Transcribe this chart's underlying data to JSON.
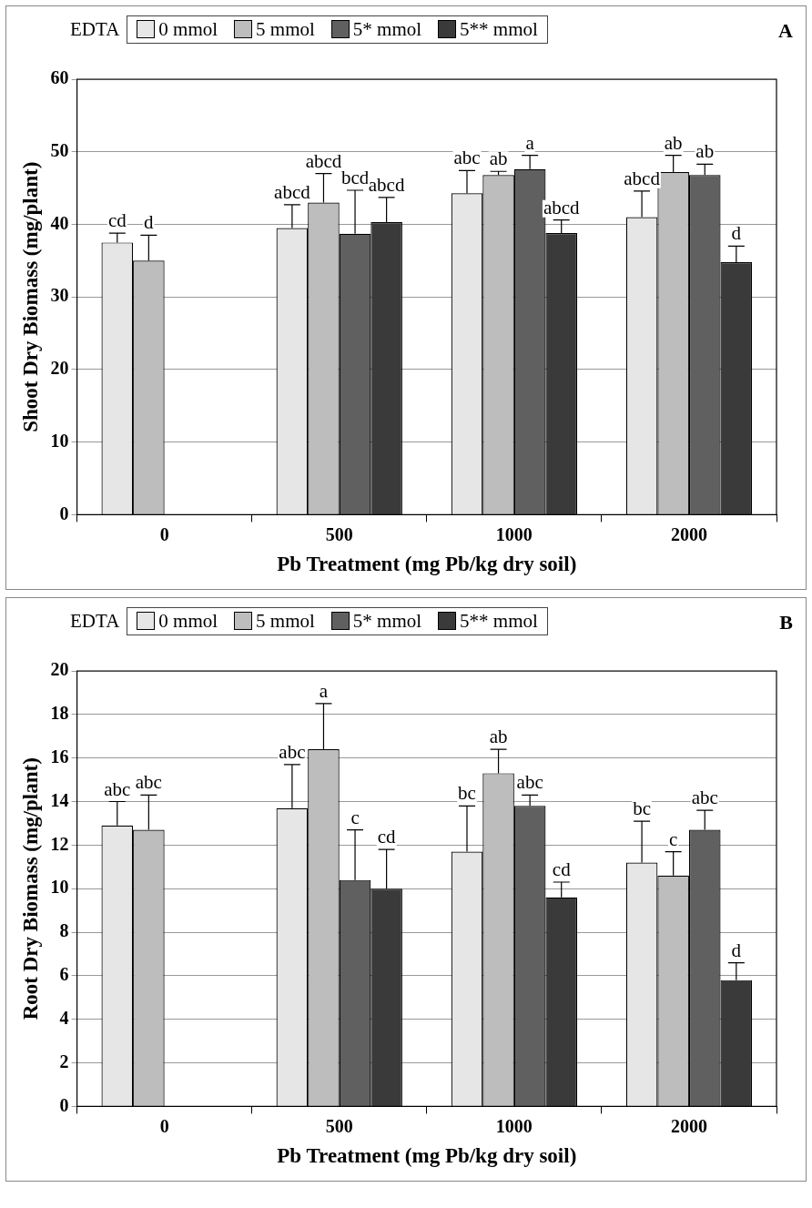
{
  "chart_data": [
    {
      "type": "bar",
      "xlabel": "Pb Treatment (mg Pb/kg dry soil)",
      "ylabel": "Shoot Dry Biomass (mg/plant)",
      "legend_title": "EDTA",
      "legend": "top",
      "grid": "y",
      "categories": [
        "0",
        "500",
        "1000",
        "2000"
      ],
      "ylim": [
        0,
        60
      ],
      "yticks": [
        0,
        10,
        20,
        30,
        40,
        50,
        60
      ],
      "annotations": [
        "A"
      ],
      "series": [
        {
          "name": "0 mmol",
          "color": "#e6e6e6",
          "values": [
            37.5,
            39.5,
            44.3,
            41
          ],
          "errors": [
            [
              37.5,
              38.8
            ],
            [
              39.5,
              42.7
            ],
            [
              44.3,
              47.4
            ],
            [
              41,
              44.6
            ]
          ],
          "value_labels": [
            "cd",
            "abcd",
            "abc",
            "abcd"
          ]
        },
        {
          "name": "5 mmol",
          "color": "#bdbdbd",
          "values": [
            35,
            43,
            46.8,
            47.2
          ],
          "errors": [
            [
              35,
              38.5
            ],
            [
              43,
              47
            ],
            [
              46.8,
              47.3
            ],
            [
              47.2,
              49.5
            ]
          ],
          "value_labels": [
            "d",
            "abcd",
            "ab",
            "ab"
          ]
        },
        {
          "name": "5* mmol",
          "color": "#606060",
          "values": [
            null,
            38.7,
            47.6,
            46.8
          ],
          "errors": [
            null,
            [
              38.7,
              44.7
            ],
            [
              47.6,
              49.5
            ],
            [
              46.8,
              48.3
            ]
          ],
          "value_labels": [
            null,
            "bcd",
            "a",
            "ab"
          ]
        },
        {
          "name": "5** mmol",
          "color": "#3a3a3a",
          "values": [
            null,
            40.3,
            38.8,
            34.8
          ],
          "errors": [
            null,
            [
              40.3,
              43.7
            ],
            [
              38.8,
              40.6
            ],
            [
              34.8,
              37
            ]
          ],
          "value_labels": [
            null,
            "abcd",
            "abcd",
            "d"
          ]
        }
      ]
    },
    {
      "type": "bar",
      "xlabel": "Pb Treatment (mg Pb/kg dry soil)",
      "ylabel": "Root Dry Biomass (mg/plant)",
      "legend_title": "EDTA",
      "legend": "top",
      "grid": "y",
      "categories": [
        "0",
        "500",
        "1000",
        "2000"
      ],
      "ylim": [
        0,
        20
      ],
      "yticks": [
        0,
        2,
        4,
        6,
        8,
        10,
        12,
        14,
        16,
        18,
        20
      ],
      "annotations": [
        "B"
      ],
      "series": [
        {
          "name": "0 mmol",
          "color": "#e6e6e6",
          "values": [
            12.9,
            13.7,
            11.7,
            11.2
          ],
          "errors": [
            [
              12.9,
              14
            ],
            [
              13.7,
              15.7
            ],
            [
              11.7,
              13.8
            ],
            [
              11.2,
              13.1
            ]
          ],
          "value_labels": [
            "abc",
            "abc",
            "bc",
            "bc"
          ]
        },
        {
          "name": "5 mmol",
          "color": "#bdbdbd",
          "values": [
            12.7,
            16.4,
            15.3,
            10.6
          ],
          "errors": [
            [
              12.7,
              14.3
            ],
            [
              16.4,
              18.5
            ],
            [
              15.3,
              16.4
            ],
            [
              10.6,
              11.7
            ]
          ],
          "value_labels": [
            "abc",
            "a",
            "ab",
            "c"
          ]
        },
        {
          "name": "5* mmol",
          "color": "#606060",
          "values": [
            null,
            10.4,
            13.8,
            12.7
          ],
          "errors": [
            null,
            [
              10.4,
              12.7
            ],
            [
              13.8,
              14.3
            ],
            [
              12.7,
              13.6
            ]
          ],
          "value_labels": [
            null,
            "c",
            "abc",
            "abc"
          ]
        },
        {
          "name": "5** mmol",
          "color": "#3a3a3a",
          "values": [
            null,
            10,
            9.6,
            5.8
          ],
          "errors": [
            null,
            [
              10,
              11.8
            ],
            [
              9.6,
              10.3
            ],
            [
              5.8,
              6.6
            ]
          ],
          "value_labels": [
            null,
            "cd",
            "cd",
            "d"
          ]
        }
      ]
    }
  ]
}
